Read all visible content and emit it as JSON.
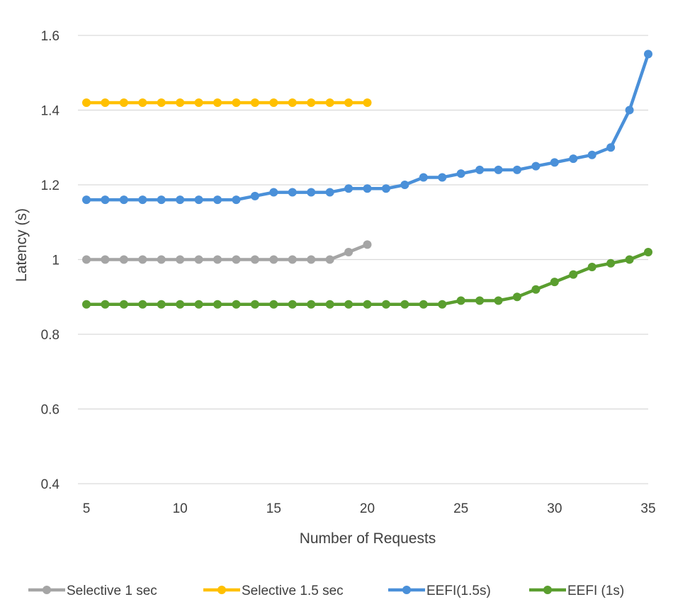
{
  "chart_data": {
    "type": "line",
    "title": "",
    "xlabel": "Number of Requests",
    "ylabel": "Latency (s)",
    "xlim": [
      5,
      35
    ],
    "ylim": [
      0.4,
      1.6
    ],
    "x_ticks": [
      5,
      10,
      15,
      20,
      25,
      30,
      35
    ],
    "y_ticks": [
      0.4,
      0.6,
      0.8,
      1,
      1.2,
      1.4,
      1.6
    ],
    "y_tick_labels": [
      "0.4",
      "0.6",
      "0.8",
      "1",
      "1.2",
      "1.4",
      "1.6"
    ],
    "grid": "horizontal",
    "legend_position": "bottom",
    "series": [
      {
        "name": "Selective 1 sec",
        "color": "#a5a5a5",
        "x": [
          5,
          6,
          7,
          8,
          9,
          10,
          11,
          12,
          13,
          14,
          15,
          16,
          17,
          18,
          19,
          20
        ],
        "values": [
          1.0,
          1.0,
          1.0,
          1.0,
          1.0,
          1.0,
          1.0,
          1.0,
          1.0,
          1.0,
          1.0,
          1.0,
          1.0,
          1.0,
          1.02,
          1.04
        ]
      },
      {
        "name": "Selective 1.5 sec",
        "color": "#ffc000",
        "x": [
          5,
          6,
          7,
          8,
          9,
          10,
          11,
          12,
          13,
          14,
          15,
          16,
          17,
          18,
          19,
          20
        ],
        "values": [
          1.42,
          1.42,
          1.42,
          1.42,
          1.42,
          1.42,
          1.42,
          1.42,
          1.42,
          1.42,
          1.42,
          1.42,
          1.42,
          1.42,
          1.42,
          1.42
        ]
      },
      {
        "name": "EEFI(1.5s)",
        "color": "#4a90d9",
        "x": [
          5,
          6,
          7,
          8,
          9,
          10,
          11,
          12,
          13,
          14,
          15,
          16,
          17,
          18,
          19,
          20,
          21,
          22,
          23,
          24,
          25,
          26,
          27,
          28,
          29,
          30,
          31,
          32,
          33,
          34,
          35
        ],
        "values": [
          1.16,
          1.16,
          1.16,
          1.16,
          1.16,
          1.16,
          1.16,
          1.16,
          1.16,
          1.17,
          1.18,
          1.18,
          1.18,
          1.18,
          1.19,
          1.19,
          1.19,
          1.2,
          1.22,
          1.22,
          1.23,
          1.24,
          1.24,
          1.24,
          1.25,
          1.26,
          1.27,
          1.28,
          1.3,
          1.4,
          1.55
        ]
      },
      {
        "name": "EEFI (1s)",
        "color": "#5a9e2f",
        "x": [
          5,
          6,
          7,
          8,
          9,
          10,
          11,
          12,
          13,
          14,
          15,
          16,
          17,
          18,
          19,
          20,
          21,
          22,
          23,
          24,
          25,
          26,
          27,
          28,
          29,
          30,
          31,
          32,
          33,
          34,
          35
        ],
        "values": [
          0.88,
          0.88,
          0.88,
          0.88,
          0.88,
          0.88,
          0.88,
          0.88,
          0.88,
          0.88,
          0.88,
          0.88,
          0.88,
          0.88,
          0.88,
          0.88,
          0.88,
          0.88,
          0.88,
          0.88,
          0.89,
          0.89,
          0.89,
          0.9,
          0.92,
          0.94,
          0.96,
          0.98,
          0.99,
          1.0,
          1.02
        ]
      }
    ]
  }
}
